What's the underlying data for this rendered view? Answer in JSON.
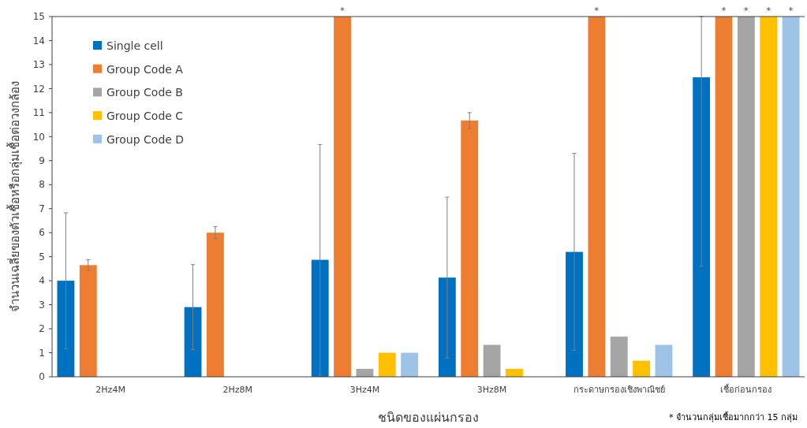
{
  "chart_data": {
    "type": "bar",
    "xlabel": "ชนิดของแผ่นกรอง",
    "ylabel": "จำนวนเฉลี่ยของตัวเชื้อหรือกลุ่มเชื้อต่อวงกล้อง",
    "categories": [
      "2Hz4M",
      "2Hz8M",
      "3Hz4M",
      "3Hz8M",
      "กระดาษกรองเชิงพาณิชย์",
      "เชื้อก่อนกรอง"
    ],
    "series": [
      {
        "name": "Single cell",
        "color": "#0070c0",
        "values": [
          4.0,
          2.9,
          4.87,
          4.13,
          5.2,
          12.47
        ],
        "errors": [
          2.83,
          1.77,
          4.8,
          3.35,
          4.1,
          [
            4.6,
            15
          ]
        ]
      },
      {
        "name": "Group Code A",
        "color": "#ed7d31",
        "values": [
          4.65,
          6.0,
          15,
          10.67,
          15,
          15
        ],
        "errors": [
          0.22,
          0.25,
          null,
          0.33,
          null,
          null
        ],
        "value_labels": [
          null,
          null,
          "*",
          null,
          "*",
          "*"
        ]
      },
      {
        "name": "Group Code B",
        "color": "#a5a5a5",
        "values": [
          null,
          null,
          0.33,
          1.33,
          1.67,
          15
        ],
        "value_labels": [
          null,
          null,
          null,
          null,
          null,
          "*"
        ]
      },
      {
        "name": "Group Code C",
        "color": "#ffc000",
        "values": [
          null,
          null,
          1.0,
          0.33,
          0.67,
          15
        ],
        "value_labels": [
          null,
          null,
          null,
          null,
          null,
          "*"
        ]
      },
      {
        "name": "Group Code D",
        "color": "#9dc3e6",
        "values": [
          null,
          null,
          1.0,
          null,
          1.33,
          15
        ],
        "value_labels": [
          null,
          null,
          null,
          null,
          null,
          "*"
        ]
      }
    ],
    "ylim": [
      0,
      15
    ],
    "yticks": [
      0,
      1,
      2,
      3,
      4,
      5,
      6,
      7,
      8,
      9,
      10,
      11,
      12,
      13,
      14,
      15
    ],
    "legend": "top left",
    "grid": false,
    "annotations": [
      "* จำนวนกลุ่มเชื้อมากกว่า 15 กลุ่ม"
    ]
  }
}
